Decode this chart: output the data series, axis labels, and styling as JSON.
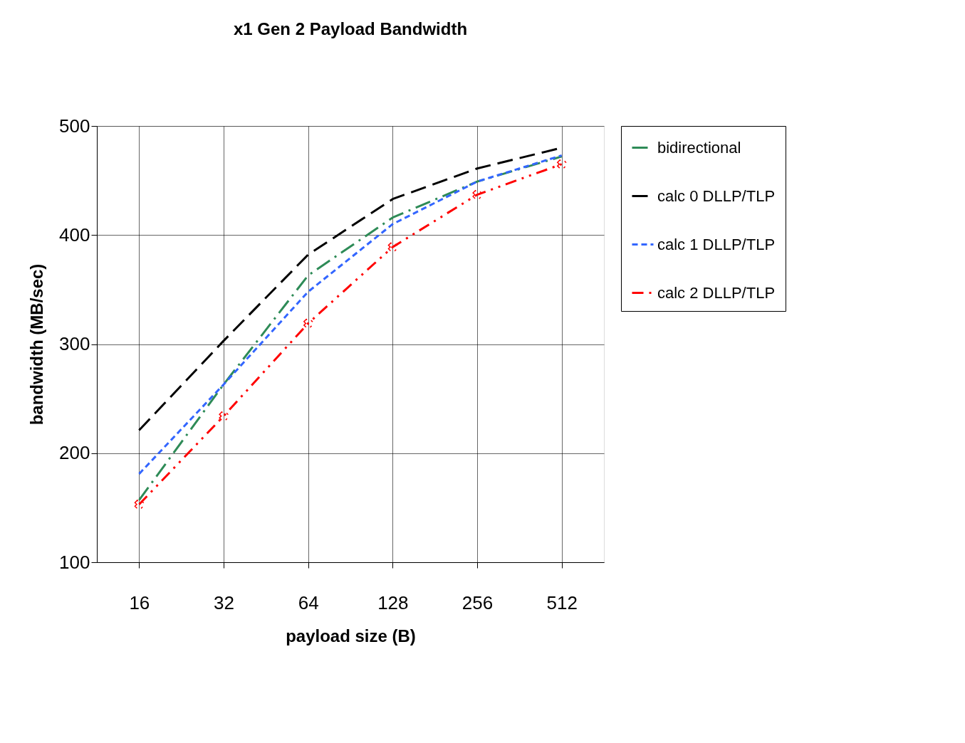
{
  "chart_data": {
    "type": "line",
    "title": "x1 Gen 2 Payload Bandwidth",
    "xlabel": "payload size (B)",
    "ylabel": "bandwidth (MB/sec)",
    "categories": [
      "16",
      "32",
      "64",
      "128",
      "256",
      "512"
    ],
    "series": [
      {
        "name": "bidirectional",
        "color": "#2e8b57",
        "line_style": "dashed",
        "values": [
          157,
          263,
          363,
          416,
          449,
          472
        ]
      },
      {
        "name": "calc 0 DLLP/TLP",
        "color": "#000000",
        "line_style": "dashed",
        "values": [
          221,
          303,
          382,
          433,
          461,
          480
        ]
      },
      {
        "name": "calc 1 DLLP/TLP",
        "color": "#3366ff",
        "line_style": "dashed",
        "values": [
          181,
          263,
          348,
          410,
          449,
          473
        ]
      },
      {
        "name": "calc 2 DLLP/TLP",
        "color": "#ff0000",
        "line_style": "dashed",
        "marker": "cross",
        "values": [
          153,
          234,
          319,
          389,
          437,
          465
        ]
      }
    ],
    "ylim": [
      100,
      500
    ],
    "yticks": [
      100,
      200,
      300,
      400,
      500
    ],
    "grid": true,
    "legend": "right"
  }
}
